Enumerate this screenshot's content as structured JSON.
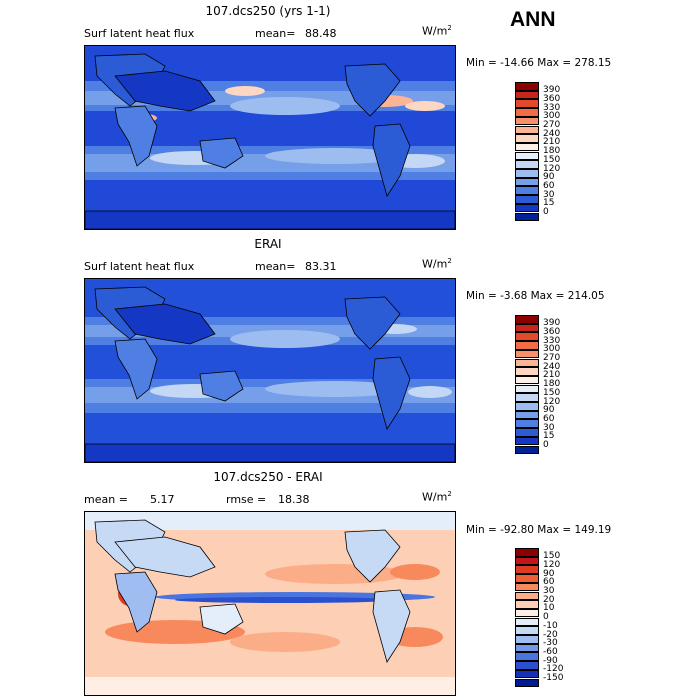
{
  "season": "ANN",
  "panels": [
    {
      "title": "107.dcs250 (yrs 1-1)",
      "field": "Surf latent heat flux",
      "stat1_label": "mean=",
      "stat1_value": "88.48",
      "stat2_label": "",
      "stat2_value": "",
      "units": "W/m",
      "units_sup": "2",
      "minmax": "Min = -14.66 Max = 278.15",
      "colorbar": {
        "labels": [
          "390",
          "360",
          "330",
          "300",
          "270",
          "240",
          "210",
          "180",
          "150",
          "120",
          "90",
          "60",
          "30",
          "15",
          "0"
        ],
        "colors": [
          "#8b0000",
          "#c8261c",
          "#e24a2b",
          "#f26c45",
          "#f8916a",
          "#fbb596",
          "#fdd7c2",
          "#fdf0e8",
          "#e6eefa",
          "#c4d8f5",
          "#9dbdf0",
          "#769fe9",
          "#4f7fe2",
          "#2c5bd6",
          "#1437c4",
          "#002299"
        ]
      },
      "background": "#1f49d6"
    },
    {
      "title": "ERAI",
      "field": "Surf latent heat flux",
      "stat1_label": "mean=",
      "stat1_value": "83.31",
      "stat2_label": "",
      "stat2_value": "",
      "units": "W/m",
      "units_sup": "2",
      "minmax": "Min =  -3.68 Max = 214.05",
      "colorbar": {
        "labels": [
          "390",
          "360",
          "330",
          "300",
          "270",
          "240",
          "210",
          "180",
          "150",
          "120",
          "90",
          "60",
          "30",
          "15",
          "0"
        ],
        "colors": [
          "#8b0000",
          "#c8261c",
          "#e24a2b",
          "#f26c45",
          "#f8916a",
          "#fbb596",
          "#fdd7c2",
          "#fdf0e8",
          "#e6eefa",
          "#c4d8f5",
          "#9dbdf0",
          "#769fe9",
          "#4f7fe2",
          "#2c5bd6",
          "#1437c4",
          "#002299"
        ]
      },
      "background": "#2350d8"
    },
    {
      "title": "107.dcs250 - ERAI",
      "field": "",
      "stat1_label": "mean =",
      "stat1_value": "5.17",
      "stat2_label": "rmse =",
      "stat2_value": "18.38",
      "units": "W/m",
      "units_sup": "2",
      "minmax": "Min = -92.80 Max = 149.19",
      "colorbar": {
        "labels": [
          "150",
          "120",
          "90",
          "60",
          "30",
          "20",
          "10",
          "0",
          "-10",
          "-20",
          "-30",
          "-60",
          "-90",
          "-120",
          "-150"
        ],
        "colors": [
          "#8b0000",
          "#c4161a",
          "#de3b24",
          "#f06036",
          "#f7895c",
          "#fbad88",
          "#fdd0b6",
          "#feeee4",
          "#e4edfa",
          "#c6d9f5",
          "#9fbdf0",
          "#7199e8",
          "#4a75df",
          "#2a50d0",
          "#1531b8",
          "#001a8f"
        ]
      },
      "background": "#fbe3d6"
    }
  ]
}
